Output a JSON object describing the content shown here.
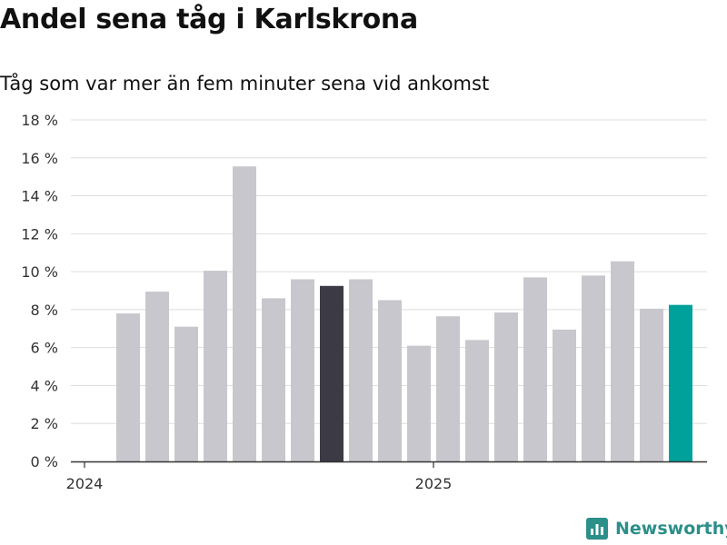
{
  "title": "Andel sena tåg i Karlskrona",
  "subtitle": "Tåg som var mer än fem minuter sena vid ankomst",
  "brand": {
    "name": "Newsworthy",
    "color": "#2b8f8a",
    "icon": "bar-chart-logo-icon"
  },
  "colors": {
    "bar": "#c8c7cd",
    "highlight_dark": "#3c3a45",
    "highlight_latest": "#00a19a",
    "grid": "#dddddd",
    "axis": "#333333"
  },
  "chart_data": {
    "type": "bar",
    "title": "Andel sena tåg i Karlskrona",
    "subtitle": "Tåg som var mer än fem minuter sena vid ankomst",
    "xlabel": "",
    "ylabel": "",
    "categories": [
      "2024-02",
      "2024-03",
      "2024-04",
      "2024-05",
      "2024-06",
      "2024-07",
      "2024-08",
      "2024-09",
      "2024-10",
      "2024-11",
      "2024-12",
      "2025-01",
      "2025-02",
      "2025-03",
      "2025-04",
      "2025-05",
      "2025-06",
      "2025-07",
      "2025-08",
      "2025-09"
    ],
    "values": [
      7.8,
      8.95,
      7.1,
      10.05,
      15.55,
      8.6,
      9.6,
      9.25,
      9.6,
      8.5,
      6.1,
      7.65,
      6.4,
      7.85,
      9.7,
      6.95,
      9.8,
      10.55,
      8.05,
      8.25
    ],
    "highlight": {
      "2024-09": "#3c3a45",
      "2025-09": "#00a19a"
    },
    "ylim": [
      0,
      18
    ],
    "yticks": [
      0,
      2,
      4,
      6,
      8,
      10,
      12,
      14,
      16,
      18
    ],
    "ytick_labels": [
      "0 %",
      "2 %",
      "4 %",
      "6 %",
      "8 %",
      "10 %",
      "12 %",
      "14 %",
      "16 %",
      "18 %"
    ],
    "xticks": [
      "2024-01",
      "2025-01"
    ],
    "xtick_labels": [
      "2024",
      "2025"
    ],
    "grid": true,
    "legend": "none"
  }
}
